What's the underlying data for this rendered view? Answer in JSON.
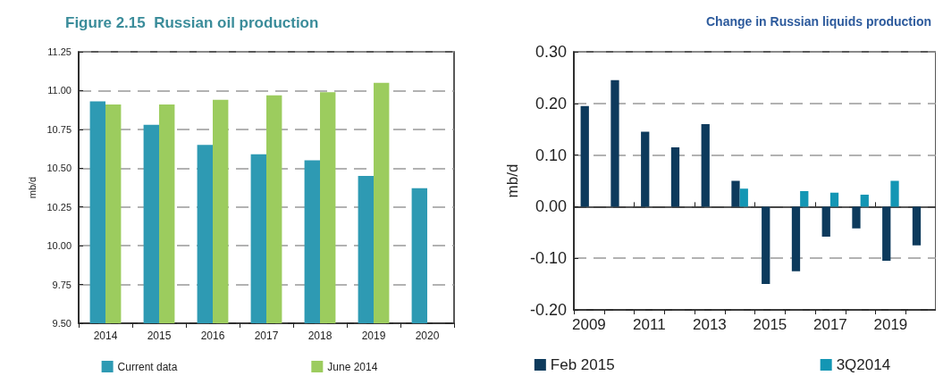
{
  "chart_data": [
    {
      "type": "bar",
      "title": "Figure 2.15  Russian oil production",
      "ylabel": "mb/d",
      "categories": [
        "2014",
        "2015",
        "2016",
        "2017",
        "2018",
        "2019",
        "2020"
      ],
      "series": [
        {
          "name": "Current data",
          "color": "#2e9ab3",
          "values": [
            10.93,
            10.78,
            10.65,
            10.59,
            10.55,
            10.45,
            10.37
          ]
        },
        {
          "name": "June 2014",
          "color": "#9ccc5e",
          "values": [
            10.91,
            10.91,
            10.94,
            10.97,
            10.99,
            11.05,
            null
          ]
        }
      ],
      "ylim": [
        9.5,
        11.25
      ],
      "yticks": [
        {
          "value": 9.5,
          "label": "9.50"
        },
        {
          "value": 9.75,
          "label": "9.75"
        },
        {
          "value": 10,
          "label": "10.00"
        },
        {
          "value": 10.25,
          "label": "10.25"
        },
        {
          "value": 10.5,
          "label": "10.50"
        },
        {
          "value": 10.75,
          "label": "10.75"
        },
        {
          "value": 11,
          "label": "11.00"
        },
        {
          "value": 11.25,
          "label": "11.25"
        }
      ],
      "grid": "y",
      "legend": "bottom"
    },
    {
      "type": "bar",
      "title": "Change in Russian liquids production",
      "ylabel": "mb/d",
      "categories": [
        "2009",
        null,
        "2011",
        null,
        "2013",
        null,
        "2015",
        null,
        "2017",
        null,
        "2019",
        null
      ],
      "series": [
        {
          "name": "Feb 2015",
          "color": "#0d3a5c",
          "values": [
            0.195,
            0.245,
            0.145,
            0.115,
            0.16,
            0.05,
            -0.15,
            -0.125,
            -0.058,
            -0.042,
            -0.105,
            -0.075
          ]
        },
        {
          "name": "3Q2014",
          "color": "#1396b4",
          "values": [
            null,
            null,
            null,
            null,
            null,
            0.035,
            null,
            0.03,
            0.027,
            0.023,
            0.05,
            null
          ]
        }
      ],
      "ylim": [
        -0.2,
        0.3
      ],
      "yticks": [
        {
          "value": -0.2,
          "label": "-0.20"
        },
        {
          "value": -0.1,
          "label": "-0.10"
        },
        {
          "value": 0,
          "label": "0.00"
        },
        {
          "value": 0.1,
          "label": "0.10"
        },
        {
          "value": 0.2,
          "label": "0.20"
        },
        {
          "value": 0.3,
          "label": "0.30"
        }
      ],
      "grid": "y",
      "legend": "bottom"
    }
  ]
}
